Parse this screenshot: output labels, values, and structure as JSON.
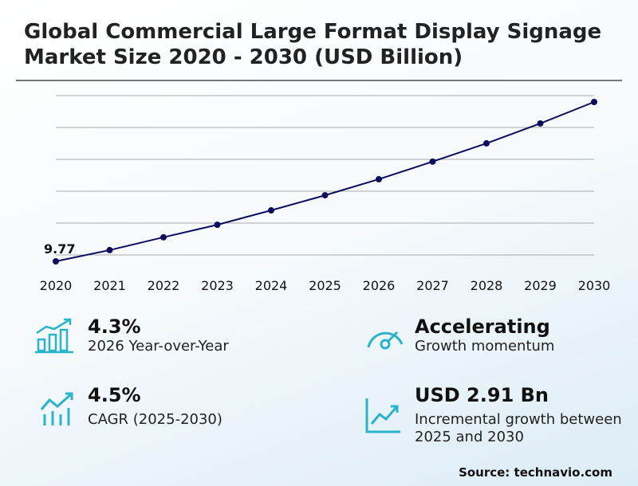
{
  "chart_data": {
    "type": "line",
    "title": "Global Commercial Large Format Display Signage Market Size 2020 - 2030 (USD Billion)",
    "categories": [
      "2020",
      "2021",
      "2022",
      "2023",
      "2024",
      "2025",
      "2026",
      "2027",
      "2028",
      "2029",
      "2030"
    ],
    "values": [
      9.77,
      10.12,
      10.52,
      10.91,
      11.36,
      11.83,
      12.33,
      12.88,
      13.45,
      14.07,
      14.74
    ],
    "color": "#0d0d5c",
    "ylim": [
      9.77,
      14.74
    ],
    "grid": true
  },
  "kpis": [
    {
      "value": "4.3%",
      "label": "2026 Year-over-Year"
    },
    {
      "value": "Accelerating",
      "label": "Growth momentum"
    },
    {
      "value": "4.5%",
      "label": "CAGR (2025-2030)"
    },
    {
      "value": "USD 2.91 Bn",
      "label": "Incremental growth between 2025 and 2030"
    }
  ],
  "source": "Source: technavio.com"
}
